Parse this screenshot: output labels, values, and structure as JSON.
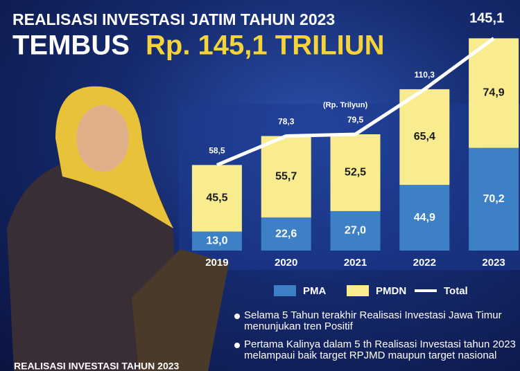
{
  "chart_data": {
    "type": "bar",
    "stacked": true,
    "title": "REALISASI INVESTASI JATIM TAHUN 2023",
    "subtitle": [
      "TEMBUS",
      "Rp. 145,1 TRILIUN"
    ],
    "unit_label": "(Rp. Trilyun)",
    "categories": [
      "2019",
      "2020",
      "2021",
      "2022",
      "2023"
    ],
    "ylim": [
      0,
      150
    ],
    "series": [
      {
        "name": "PMA",
        "color": "#3d80c6",
        "values": [
          13.0,
          22.6,
          27.0,
          44.9,
          70.2
        ],
        "value_labels": [
          "13,0",
          "22,6",
          "27,0",
          "44,9",
          "70,2"
        ]
      },
      {
        "name": "PMDN",
        "color": "#f9ec8f",
        "values": [
          45.5,
          55.7,
          52.5,
          65.4,
          74.9
        ],
        "value_labels": [
          "45,5",
          "55,7",
          "52,5",
          "65,4",
          "74,9"
        ]
      },
      {
        "name": "Total",
        "type": "line",
        "color": "#ffffff",
        "values": [
          58.5,
          78.3,
          79.5,
          110.3,
          145.1
        ],
        "value_labels": [
          "58,5",
          "78,3",
          "79,5",
          "110,3",
          "145,1"
        ]
      }
    ],
    "notes": [
      "Selama 5 Tahun terakhir Realisasi Investasi Jawa Timur menunjukan tren Positif",
      "Pertama Kalinya dalam 5 th Realisasi Investasi tahun 2023 melampaui baik target RPJMD maupun target nasional"
    ],
    "caption": "REALISASI INVESTASI TAHUN 2023"
  }
}
